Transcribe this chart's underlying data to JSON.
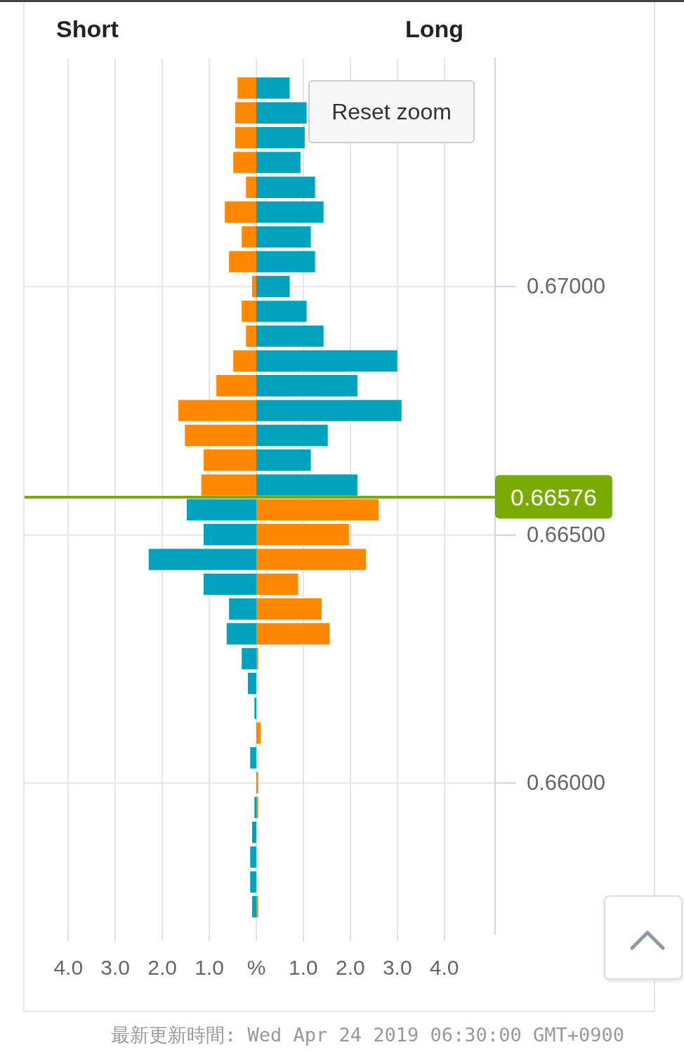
{
  "chart_data": {
    "type": "bar",
    "orientation": "horizontal",
    "stacked": true,
    "x": [
      0.674,
      0.6735,
      0.673,
      0.6725,
      0.672,
      0.6715,
      0.671,
      0.6705,
      0.67,
      0.6695,
      0.669,
      0.6685,
      0.668,
      0.6675,
      0.667,
      0.6665,
      0.666,
      0.6655,
      0.665,
      0.6645,
      0.664,
      0.6635,
      0.663,
      0.6625,
      0.662,
      0.6615,
      0.661,
      0.6605,
      0.66,
      0.6595,
      0.659,
      0.6585,
      0.658,
      0.6575
    ],
    "series": [
      {
        "values": [
          -0.4,
          -0.45,
          -0.45,
          -0.49,
          -0.22,
          -0.67,
          -0.31,
          -0.58,
          -0.09,
          -0.31,
          -0.22,
          -0.49,
          -0.85,
          -1.66,
          -1.52,
          -1.12,
          -1.17,
          -1.48,
          -1.12,
          -2.29,
          -1.12,
          -0.58,
          -0.63,
          -0.31,
          -0.18,
          -0.04,
          null,
          -0.13,
          null,
          -0.04,
          -0.09,
          -0.13,
          -0.13,
          -0.09
        ],
        "colors": [
          "#ff8800",
          "#ff8800",
          "#ff8800",
          "#ff8800",
          "#ff8800",
          "#ff8800",
          "#ff8800",
          "#ff8800",
          "#ff8800",
          "#ff8800",
          "#ff8800",
          "#ff8800",
          "#ff8800",
          "#ff8800",
          "#ff8800",
          "#ff8800",
          "#ff8800",
          "#00a2bd",
          "#00a2bd",
          "#00a2bd",
          "#00a2bd",
          "#00a2bd",
          "#00a2bd",
          "#00a2bd",
          "#00a2bd",
          "#00a2bd",
          null,
          "#00a2bd",
          null,
          "#00a2bd",
          "#00a2bd",
          "#00a2bd",
          "#00a2bd",
          "#00a2bd"
        ]
      },
      {
        "values": [
          0.71,
          1.07,
          1.03,
          0.94,
          1.25,
          1.43,
          1.16,
          1.25,
          0.71,
          1.07,
          1.43,
          3.0,
          2.15,
          3.09,
          1.52,
          1.16,
          2.15,
          2.6,
          1.97,
          2.33,
          0.89,
          1.39,
          1.56,
          0.04,
          null,
          null,
          0.09,
          null,
          0.04,
          0.04,
          null,
          null,
          null,
          0.04
        ],
        "colors": [
          "#00a2bd",
          "#00a2bd",
          "#00a2bd",
          "#00a2bd",
          "#00a2bd",
          "#00a2bd",
          "#00a2bd",
          "#00a2bd",
          "#00a2bd",
          "#00a2bd",
          "#00a2bd",
          "#00a2bd",
          "#00a2bd",
          "#00a2bd",
          "#00a2bd",
          "#00a2bd",
          "#00a2bd",
          "#ff8800",
          "#ff8800",
          "#ff8800",
          "#ff8800",
          "#ff8800",
          "#ff8800",
          "#ff8800",
          null,
          null,
          "#ff8800",
          null,
          "#ff8800",
          "#ff8800",
          null,
          null,
          null,
          "#ff8800"
        ]
      }
    ],
    "xlim": [
      -4.93,
      5.08
    ],
    "xticks": [
      {
        "value": -4,
        "label": "4.0"
      },
      {
        "value": -3,
        "label": "3.0"
      },
      {
        "value": -2,
        "label": "2.0"
      },
      {
        "value": -1,
        "label": "1.0"
      },
      {
        "value": 0,
        "label": "%"
      },
      {
        "value": 1,
        "label": "1.0"
      },
      {
        "value": 2,
        "label": "2.0"
      },
      {
        "value": 3,
        "label": "3.0"
      },
      {
        "value": 4,
        "label": "4.0"
      }
    ],
    "ylim": [
      0.65695,
      0.6746
    ],
    "yticks": [
      {
        "value": 0.66,
        "label": "0.66000"
      },
      {
        "value": 0.665,
        "label": "0.66500"
      },
      {
        "value": 0.67,
        "label": "0.67000"
      }
    ],
    "grid": true,
    "ref_lines": [
      {
        "axis": "y",
        "value": 0.66576,
        "label": "0.66576",
        "color": "#7aab00"
      }
    ],
    "annotations": [
      "Short",
      "Long",
      "Reset zoom",
      "最新更新時間: Wed Apr 24 2019 06:30:00 GMT+0900"
    ]
  }
}
